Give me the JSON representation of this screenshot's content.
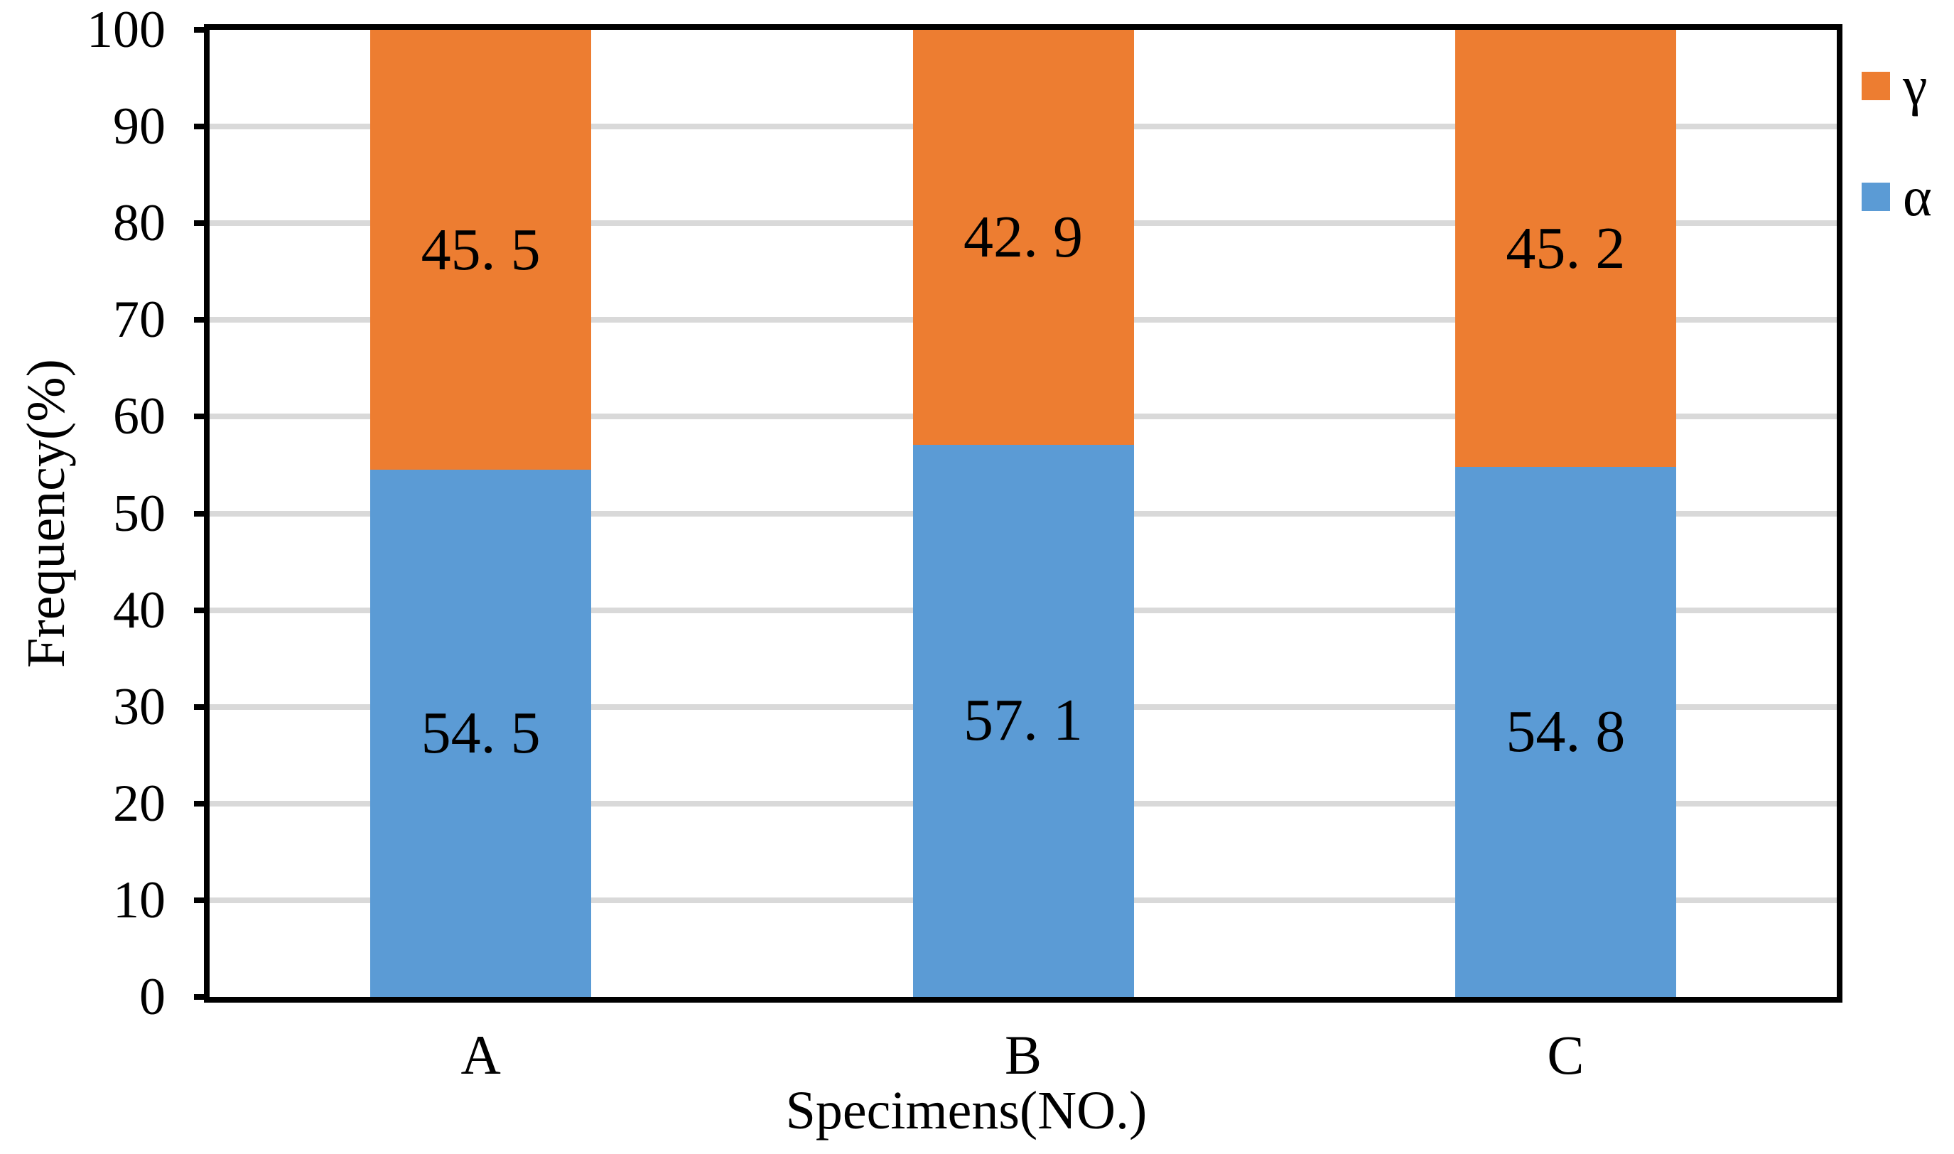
{
  "chart_data": {
    "type": "bar",
    "stacked": true,
    "title": "",
    "xlabel": "Specimens(NO.)",
    "ylabel": "Frequency(%)",
    "categories": [
      "A",
      "B",
      "C"
    ],
    "series": [
      {
        "name": "α",
        "color": "#5B9BD5",
        "values": [
          54.5,
          57.1,
          54.8
        ],
        "value_labels": [
          "54. 5",
          "57. 1",
          "54. 8"
        ]
      },
      {
        "name": "γ",
        "color": "#ED7D31",
        "values": [
          45.5,
          42.9,
          45.2
        ],
        "value_labels": [
          "45. 5",
          "42. 9",
          "45. 2"
        ]
      }
    ],
    "ylim": [
      0,
      100
    ],
    "ytick_labels": [
      "0",
      "10",
      "20",
      "30",
      "40",
      "50",
      "60",
      "70",
      "80",
      "90",
      "100"
    ],
    "grid": "horizontal-major",
    "grid_color": "#D9D9D9",
    "axis_color": "#000000",
    "plot_border": "full-box",
    "legend_position": "right",
    "legend": [
      {
        "label": "γ",
        "color": "#ED7D31",
        "swatch": "square-icon"
      },
      {
        "label": "α",
        "color": "#5B9BD5",
        "swatch": "square-icon"
      }
    ]
  }
}
